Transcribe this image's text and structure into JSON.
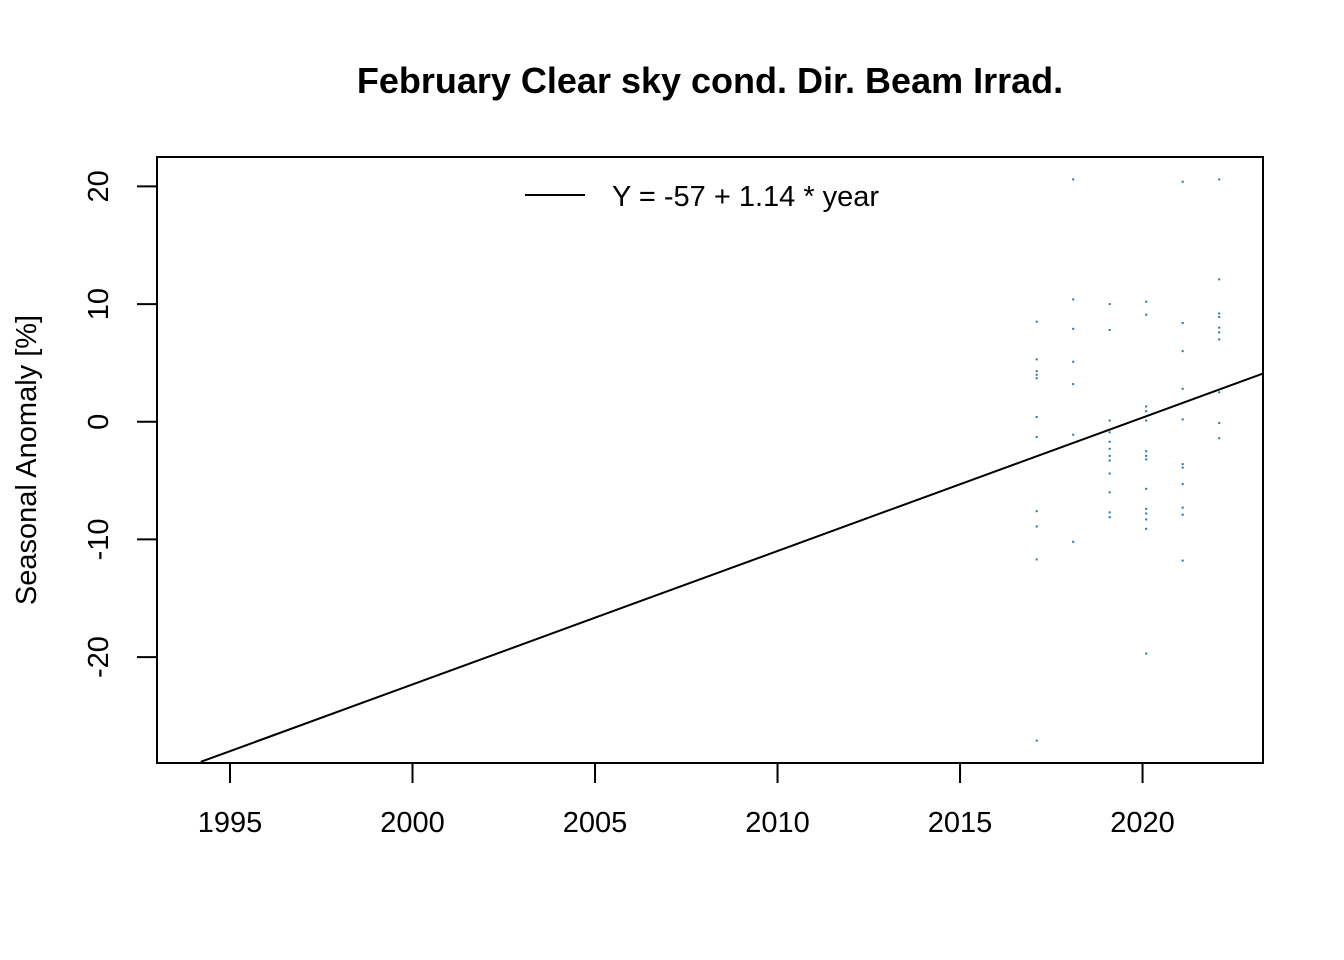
{
  "chart_data": {
    "type": "scatter",
    "title": "February Clear sky cond. Dir. Beam Irrad.",
    "xlabel": "",
    "ylabel": "Seasonal Anomaly [%]",
    "xlim": [
      1993,
      2023.3
    ],
    "ylim": [
      -29,
      22.5
    ],
    "xticks": [
      1995,
      2000,
      2005,
      2010,
      2015,
      2020
    ],
    "yticks": [
      -20,
      -10,
      0,
      10,
      20
    ],
    "grid": false,
    "legend": {
      "position": "top-center",
      "entries": [
        "Y = -57 + 1.14 * year"
      ]
    },
    "point_color": "#1f77b4",
    "line_color": "#000000",
    "trend": {
      "label": "Y = -57 + 1.14 * year",
      "x": [
        1994.2,
        2023.3
      ],
      "y": [
        -28.9,
        4.1
      ]
    },
    "series": [
      {
        "type": "scatter",
        "points": [
          [
            2017.1,
            8.5
          ],
          [
            2017.1,
            5.3
          ],
          [
            2017.1,
            4.3
          ],
          [
            2017.1,
            4.0
          ],
          [
            2017.1,
            3.7
          ],
          [
            2017.1,
            0.4
          ],
          [
            2017.1,
            -1.3
          ],
          [
            2017.1,
            -7.6
          ],
          [
            2017.1,
            -8.9
          ],
          [
            2017.1,
            -11.7
          ],
          [
            2017.1,
            -27.1
          ],
          [
            2018.1,
            20.6
          ],
          [
            2018.1,
            10.4
          ],
          [
            2018.1,
            7.9
          ],
          [
            2018.1,
            5.1
          ],
          [
            2018.1,
            3.2
          ],
          [
            2018.1,
            -1.1
          ],
          [
            2018.1,
            -10.2
          ],
          [
            2019.1,
            10.0
          ],
          [
            2019.1,
            7.8
          ],
          [
            2019.1,
            0.1
          ],
          [
            2019.1,
            -0.9
          ],
          [
            2019.1,
            -1.7
          ],
          [
            2019.1,
            -2.3
          ],
          [
            2019.1,
            -2.9
          ],
          [
            2019.1,
            -3.3
          ],
          [
            2019.1,
            -4.4
          ],
          [
            2019.1,
            -6.0
          ],
          [
            2019.1,
            -7.7
          ],
          [
            2019.1,
            -8.1
          ],
          [
            2020.1,
            10.2
          ],
          [
            2020.1,
            9.1
          ],
          [
            2020.1,
            1.3
          ],
          [
            2020.1,
            0.9
          ],
          [
            2020.1,
            0.1
          ],
          [
            2020.1,
            -2.5
          ],
          [
            2020.1,
            -2.9
          ],
          [
            2020.1,
            -3.2
          ],
          [
            2020.1,
            -5.7
          ],
          [
            2020.1,
            -7.4
          ],
          [
            2020.1,
            -7.8
          ],
          [
            2020.1,
            -8.3
          ],
          [
            2020.1,
            -9.1
          ],
          [
            2020.1,
            -19.7
          ],
          [
            2021.1,
            20.4
          ],
          [
            2021.1,
            8.4
          ],
          [
            2021.1,
            6.0
          ],
          [
            2021.1,
            2.8
          ],
          [
            2021.1,
            0.2
          ],
          [
            2021.1,
            -3.6
          ],
          [
            2021.1,
            -3.9
          ],
          [
            2021.1,
            -5.3
          ],
          [
            2021.1,
            -7.3
          ],
          [
            2021.1,
            -7.9
          ],
          [
            2021.1,
            -11.8
          ],
          [
            2022.1,
            20.6
          ],
          [
            2022.1,
            12.1
          ],
          [
            2022.1,
            9.2
          ],
          [
            2022.1,
            8.9
          ],
          [
            2022.1,
            8.0
          ],
          [
            2022.1,
            7.6
          ],
          [
            2022.1,
            7.0
          ],
          [
            2022.1,
            2.5
          ],
          [
            2022.1,
            -0.1
          ],
          [
            2022.1,
            -1.4
          ]
        ]
      }
    ]
  }
}
